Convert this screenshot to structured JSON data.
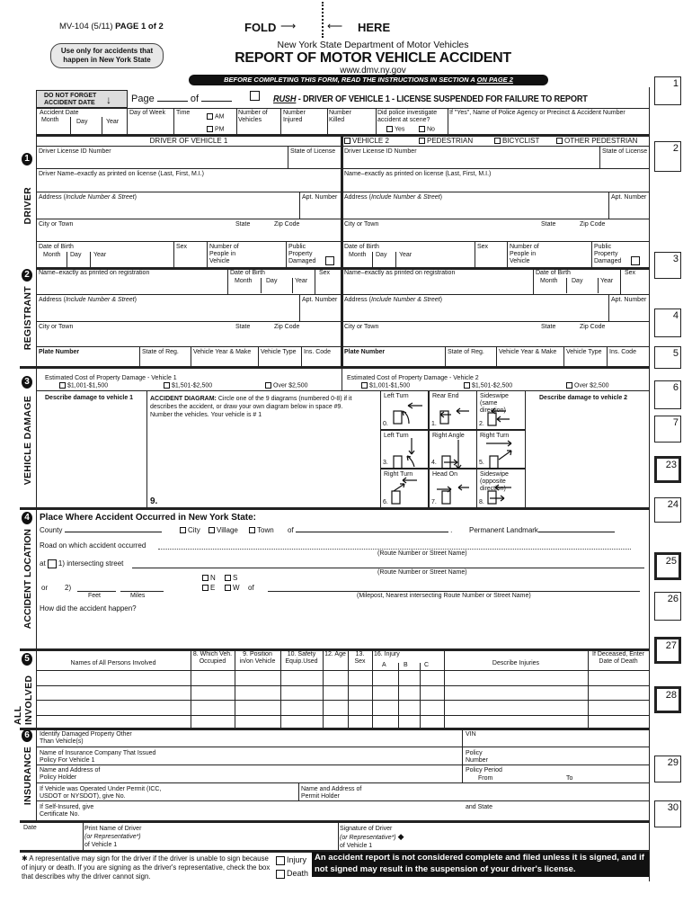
{
  "header": {
    "form_id": "MV-104 (5/11)",
    "page_label": "PAGE 1 of 2",
    "fold": "FOLD",
    "here": "HERE",
    "agency": "New York State Department of Motor Vehicles",
    "title": "REPORT OF MOTOR VEHICLE ACCIDENT",
    "website": "www.dmv.ny.gov",
    "nys_note": "Use only for accidents that happen in New York State",
    "banner_pre": "BEFORE COMPLETING THIS FORM,  READ THE INSTRUCTIONS IN SECTION A ",
    "banner_link": "ON PAGE 2"
  },
  "top": {
    "do_not_forget": "DO NOT FORGET ACCIDENT DATE",
    "page": "Page",
    "of": "of",
    "rush": "RUSH",
    "rush_text": " - DRIVER OF VEHICLE 1 - LICENSE SUSPENDED FOR FAILURE TO REPORT",
    "accident_date": "Accident Date",
    "month": "Month",
    "day": "Day",
    "year": "Year",
    "day_of_week": "Day of Week",
    "time": "Time",
    "am": "AM",
    "pm": "PM",
    "num_vehicles": "Number of Vehicles",
    "num_injured": "Number Injured",
    "num_killed": "Number Killed",
    "police": "Did police investigate accident at scene?",
    "yes": "Yes",
    "no": "No",
    "police_agency": "If \"Yes\", Name of Police Agency or Precinct & Accident Number"
  },
  "columns": {
    "v1_header": "DRIVER OF VEHICLE 1",
    "v2_options": [
      "VEHICLE 2",
      "PEDESTRIAN",
      "BICYCLIST",
      "OTHER PEDESTRIAN"
    ]
  },
  "fields": {
    "dl_id": "Driver License ID Number",
    "state_license": "State of License",
    "driver_name_v1": "Driver Name–exactly as printed on license (Last, First, M.I.)",
    "driver_name_v2": "Name–exactly as printed on license (Last, First, M.I.)",
    "address": "Address (",
    "address_italic": "Include Number & Street",
    "address_close": ")",
    "apt": "Apt. Number",
    "city": "City or Town",
    "state": "State",
    "zip": "Zip Code",
    "dob": "Date of Birth",
    "month": "Month",
    "day": "Day",
    "year": "Year",
    "sex": "Sex",
    "num_people": "Number of People in Vehicle",
    "public_property": "Public Property Damaged",
    "reg_name": "Name–exactly as printed on registration",
    "plate": "Plate Number",
    "state_reg": "State of Reg.",
    "veh_year_make": "Vehicle Year & Make",
    "veh_type": "Vehicle Type",
    "ins_code": "Ins. Code"
  },
  "side_labels": {
    "driver": "DRIVER",
    "registrant": "REGISTRANT",
    "vehicle_damage": "VEHICLE DAMAGE",
    "accident_location": "ACCIDENT LOCATION",
    "all_involved": "ALL INVOLVED",
    "insurance": "INSURANCE"
  },
  "section_numbers": [
    "1",
    "2",
    "3",
    "4",
    "5",
    "6"
  ],
  "right_boxes": [
    "1",
    "2",
    "3",
    "4",
    "5",
    "6",
    "7",
    "23",
    "24",
    "25",
    "26",
    "27",
    "28",
    "29",
    "30"
  ],
  "damage": {
    "cost_v1": "Estimated Cost of Property Damage - Vehicle 1",
    "cost_v2": "Estimated Cost of Property Damage - Vehicle 2",
    "cost_options": [
      "$1,001-$1,500",
      "$1,501-$2,500",
      "Over $2,500"
    ],
    "describe_v1": "Describe damage to vehicle 1",
    "describe_v2": "Describe damage to vehicle 2",
    "diagram_bold": "ACCIDENT DIAGRAM:",
    "diagram_text1": " Circle one of the 9 diagrams (numbered 0-8) if it",
    "diagram_text2": "describes the accident, or draw your own diagram below in space #9.",
    "diagram_text3": "Number the vehicles. Your vehicle is # 1",
    "space9": "9.",
    "diagrams": [
      {
        "num": "0.",
        "label": "Left Turn"
      },
      {
        "num": "1.",
        "label": "Rear End"
      },
      {
        "num": "2.",
        "label": "Sideswipe (same direction)"
      },
      {
        "num": "3.",
        "label": "Left Turn"
      },
      {
        "num": "4.",
        "label": "Right Angle"
      },
      {
        "num": "5.",
        "label": "Right Turn"
      },
      {
        "num": "6.",
        "label": "Right Turn"
      },
      {
        "num": "7.",
        "label": "Head On"
      },
      {
        "num": "8.",
        "label": "Sideswipe (opposite direction)"
      }
    ]
  },
  "location": {
    "title": "Place Where Accident Occurred in New York State:",
    "county": "County",
    "city": "City",
    "village": "Village",
    "town": "Town",
    "of": "of",
    "landmark": "Permanent Landmark",
    "road": "Road on which accident occurred",
    "route_hint": "(Route Number or Street Name)",
    "at": "at",
    "intersecting": "1) intersecting street",
    "or": "or",
    "two": "2)",
    "feet": "Feet",
    "miles": "Miles",
    "n": "N",
    "s": "S",
    "e": "E",
    "w": "W",
    "milepost_hint": "(Milepost, Nearest intersecting Route Number or Street Name)",
    "how": "How did the accident happen?"
  },
  "involved": {
    "headers": [
      "Names of All Persons Involved",
      "8. Which Veh. Occupied",
      "9. Position in/on Vehicle",
      "10. Safety Equip.Used",
      "12. Age",
      "13. Sex",
      "16. Injury",
      "Describe Injuries",
      "If Deceased, Enter Date of Death"
    ],
    "injury_sub": [
      "A",
      "B",
      "C"
    ]
  },
  "insurance": {
    "damaged_property": "Identify Damaged Property Other Than Vehicle(s)",
    "vin": "VIN",
    "ins_company": "Name of Insurance Company That Issued Policy For Vehicle 1",
    "policy_number": "Policy Number",
    "policy_holder": "Name and Address of Policy Holder",
    "policy_period": "Policy Period",
    "from": "From",
    "to": "To",
    "permit": "If Vehicle was Operated Under Permit (ICC, USDOT or NYSDOT), give No.",
    "permit_holder": "Name and Address of Permit Holder",
    "self_insured": "If Self-Insured, give Certificate No.",
    "and_state": "and State"
  },
  "signature": {
    "date": "Date",
    "print_name": "Print Name of Driver",
    "or_rep": "(or Representative*)",
    "of_vehicle": "of Vehicle 1",
    "signature": "Signature of Driver"
  },
  "footer": {
    "rep_note": "A representative may sign for the driver if the driver is unable to sign because of injury or death. If you are signing as the driver's representative, check the box that describes why the driver cannot sign.",
    "injury": "Injury",
    "death": "Death",
    "warning": "An accident report is not considered complete and filed unless it is signed, and if not signed may result in the suspension of your driver's license."
  }
}
